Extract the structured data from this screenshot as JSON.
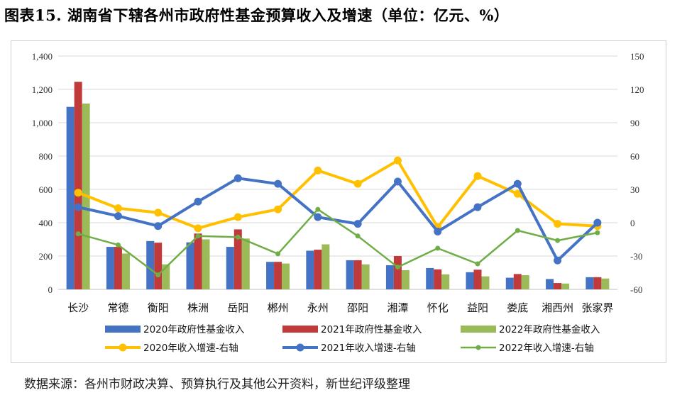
{
  "figure": {
    "title": "图表15. 湖南省下辖各州市政府性基金预算收入及增速（单位：亿元、%）",
    "source": "数据来源：各州市财政决算、预算执行及其他公开资料，新世纪评级整理"
  },
  "chart_data": {
    "type": "bar",
    "categories": [
      "长沙",
      "常德",
      "衡阳",
      "株洲",
      "岳阳",
      "郴州",
      "永州",
      "邵阳",
      "湘潭",
      "怀化",
      "益阳",
      "娄底",
      "湘西州",
      "张家界"
    ],
    "y_left": {
      "min": 0,
      "max": 1400,
      "step": 200,
      "tick_labels": [
        "0",
        "200",
        "400",
        "600",
        "800",
        "1,000",
        "1,200",
        "1,400"
      ]
    },
    "y_right": {
      "min": -60,
      "max": 150,
      "step": 30,
      "tick_labels": [
        "-60",
        "-30",
        "0",
        "30",
        "60",
        "90",
        "120",
        "150"
      ]
    },
    "grid": true,
    "legend_position": "bottom",
    "bar_series": [
      {
        "name": "2020年政府性基金收入",
        "color": "#4472c4",
        "values": [
          1095,
          255,
          290,
          282,
          255,
          165,
          232,
          175,
          145,
          128,
          103,
          70,
          62,
          73
        ]
      },
      {
        "name": "2021年政府性基金收入",
        "color": "#c0393b",
        "values": [
          1245,
          255,
          280,
          335,
          360,
          165,
          238,
          175,
          200,
          120,
          118,
          92,
          38,
          73
        ]
      },
      {
        "name": "2022年政府性基金收入",
        "color": "#9bbb59",
        "values": [
          1115,
          215,
          150,
          300,
          305,
          155,
          270,
          150,
          115,
          90,
          78,
          85,
          35,
          65
        ]
      }
    ],
    "line_series": [
      {
        "name": "2020年收入增速-右轴",
        "color": "#ffc000",
        "width": 4,
        "values": [
          27,
          13,
          9,
          -5,
          5,
          12,
          47,
          35,
          56,
          -4,
          42,
          26,
          -1,
          -3
        ]
      },
      {
        "name": "2021年收入增速-右轴",
        "color": "#4472c4",
        "width": 4,
        "values": [
          14,
          6,
          -3,
          19,
          40,
          35,
          5,
          -1,
          37,
          -8,
          14,
          35,
          -34,
          0
        ]
      },
      {
        "name": "2022年收入增速-右轴",
        "color": "#70ad47",
        "width": 2.5,
        "values": [
          -10,
          -20,
          -47,
          -12,
          -13,
          -28,
          12,
          -12,
          -40,
          -23,
          -37,
          -7,
          -16,
          -9
        ]
      }
    ]
  }
}
